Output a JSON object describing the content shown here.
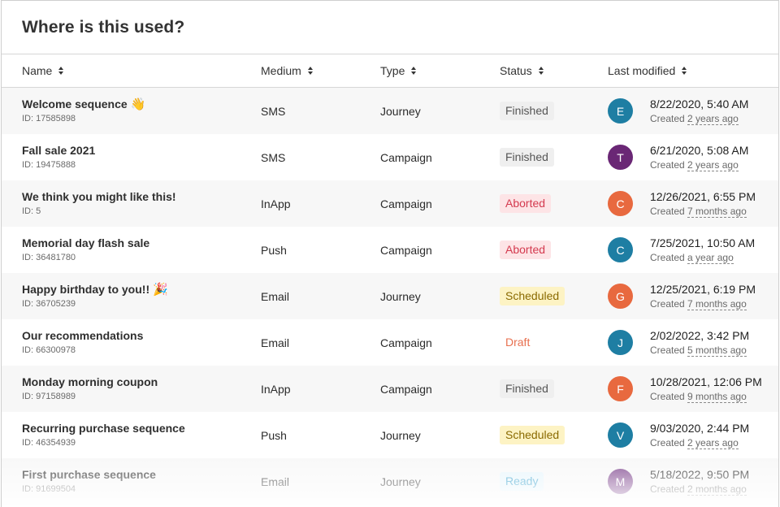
{
  "title": "Where is this used?",
  "columns": {
    "name": "Name",
    "medium": "Medium",
    "type": "Type",
    "status": "Status",
    "last_modified": "Last modified"
  },
  "created_prefix": "Created",
  "status_colors": {
    "Finished": {
      "bg": "#efefef",
      "fg": "#555555"
    },
    "Aborted": {
      "bg": "#fde4e6",
      "fg": "#d43a4f"
    },
    "Scheduled": {
      "bg": "#fdf3c4",
      "fg": "#8a6a00"
    },
    "Draft": {
      "bg": "#ffffff",
      "fg": "#e8704f"
    },
    "Ready": {
      "bg": "#e6f5fb",
      "fg": "#2b9ac9"
    }
  },
  "rows": [
    {
      "name": "Welcome sequence",
      "emoji": "👋",
      "id": "ID: 17585898",
      "medium": "SMS",
      "type": "Journey",
      "status": "Finished",
      "avatar": "E",
      "avatar_color": "#1e7ea3",
      "date": "8/22/2020, 5:40 AM",
      "created": "2 years ago"
    },
    {
      "name": "Fall sale 2021",
      "emoji": "",
      "id": "ID: 19475888",
      "medium": "SMS",
      "type": "Campaign",
      "status": "Finished",
      "avatar": "T",
      "avatar_color": "#6a2775",
      "date": "6/21/2020, 5:08 AM",
      "created": "2 years ago"
    },
    {
      "name": "We think you might like this!",
      "emoji": "",
      "id": "ID: 5",
      "medium": "InApp",
      "type": "Campaign",
      "status": "Aborted",
      "avatar": "C",
      "avatar_color": "#e8693f",
      "date": "12/26/2021, 6:55 PM",
      "created": "7 months ago"
    },
    {
      "name": "Memorial day flash sale",
      "emoji": "",
      "id": "ID: 36481780",
      "medium": "Push",
      "type": "Campaign",
      "status": "Aborted",
      "avatar": "C",
      "avatar_color": "#1e7ea3",
      "date": "7/25/2021, 10:50 AM",
      "created": "a year ago"
    },
    {
      "name": "Happy birthday to you!!",
      "emoji": "🎉",
      "id": "ID: 36705239",
      "medium": "Email",
      "type": "Journey",
      "status": "Scheduled",
      "avatar": "G",
      "avatar_color": "#e8693f",
      "date": "12/25/2021, 6:19 PM",
      "created": "7 months ago"
    },
    {
      "name": "Our recommendations",
      "emoji": "",
      "id": "ID: 66300978",
      "medium": "Email",
      "type": "Campaign",
      "status": "Draft",
      "avatar": "J",
      "avatar_color": "#1e7ea3",
      "date": "2/02/2022, 3:42 PM",
      "created": "5 months ago"
    },
    {
      "name": "Monday morning coupon",
      "emoji": "",
      "id": "ID: 97158989",
      "medium": "InApp",
      "type": "Campaign",
      "status": "Finished",
      "avatar": "F",
      "avatar_color": "#e8693f",
      "date": "10/28/2021, 12:06 PM",
      "created": "9 months ago"
    },
    {
      "name": "Recurring purchase sequence",
      "emoji": "",
      "id": "ID: 46354939",
      "medium": "Push",
      "type": "Journey",
      "status": "Scheduled",
      "avatar": "V",
      "avatar_color": "#1e7ea3",
      "date": "9/03/2020, 2:44 PM",
      "created": "2 years ago"
    },
    {
      "name": "First purchase sequence",
      "emoji": "",
      "id": "ID: 91699504",
      "medium": "Email",
      "type": "Journey",
      "status": "Ready",
      "avatar": "M",
      "avatar_color": "#7a3f8a",
      "date": "5/18/2022, 9:50 PM",
      "created": "2 months ago"
    }
  ]
}
